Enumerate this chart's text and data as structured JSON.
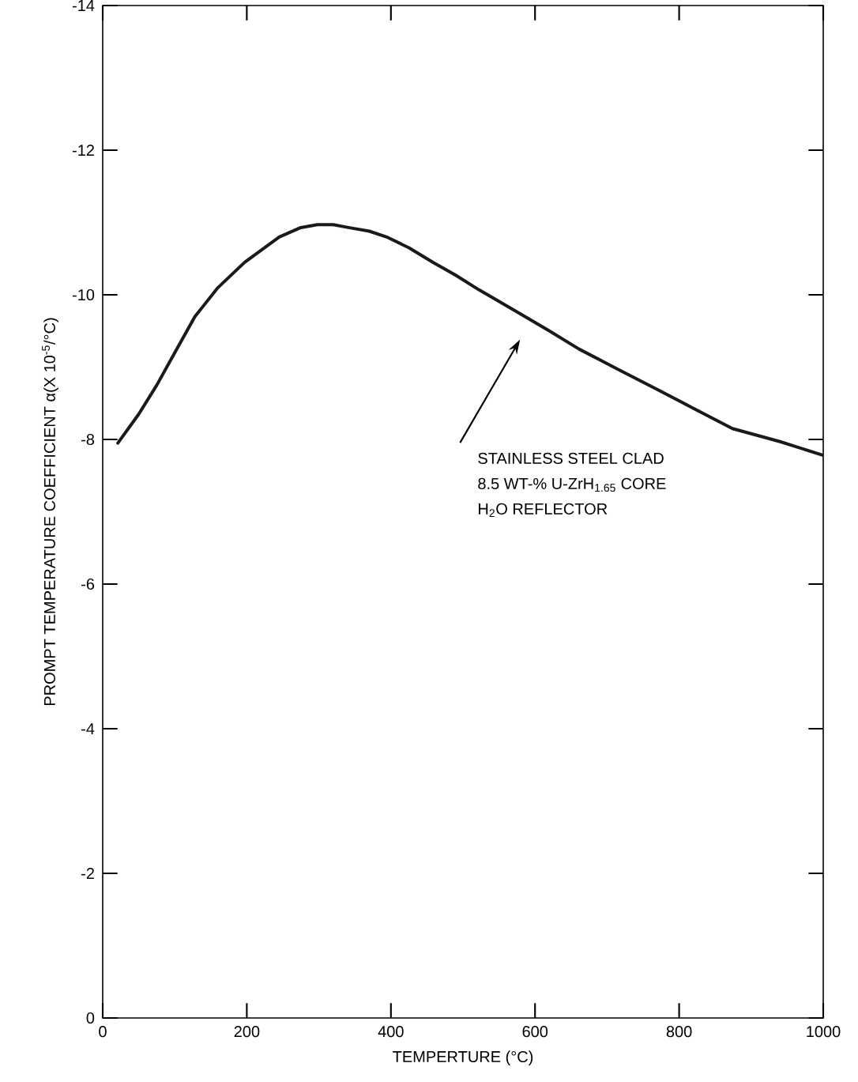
{
  "chart_data": {
    "type": "line",
    "xlabel": "TEMPERTURE (°C)",
    "ylabel": "PROMPT TEMPERATURE COEFFICIENT α(X 10$^{-5}$/°C)",
    "xlim": [
      0,
      1000
    ],
    "ylim": [
      0,
      -14
    ],
    "xticks": [
      0,
      200,
      400,
      600,
      800,
      1000
    ],
    "yticks": [
      -14,
      -12,
      -10,
      -8,
      -6,
      -4,
      -2,
      0
    ],
    "series": [
      {
        "color": "#1a1a1a",
        "x": [
          21,
          50,
          75,
          100,
          128,
          160,
          197,
          245,
          275,
          298,
          320,
          341,
          370,
          394,
          425,
          458,
          490,
          522,
          555,
          586,
          620,
          661,
          715,
          768,
          820,
          874,
          940,
          1000
        ],
        "values": [
          -7.95,
          -8.35,
          -8.75,
          -9.2,
          -9.7,
          -10.1,
          -10.45,
          -10.8,
          -10.93,
          -10.97,
          -10.97,
          -10.93,
          -10.88,
          -10.8,
          -10.65,
          -10.45,
          -10.27,
          -10.07,
          -9.88,
          -9.7,
          -9.5,
          -9.25,
          -8.97,
          -8.7,
          -8.43,
          -8.15,
          -7.97,
          -7.78
        ]
      }
    ],
    "annotations": [
      "STAINLESS STEEL CLAD",
      "8.5 WT-% U-ZrH$_{1.65}$ CORE",
      "H$_{2}$O REFLECTOR"
    ]
  }
}
